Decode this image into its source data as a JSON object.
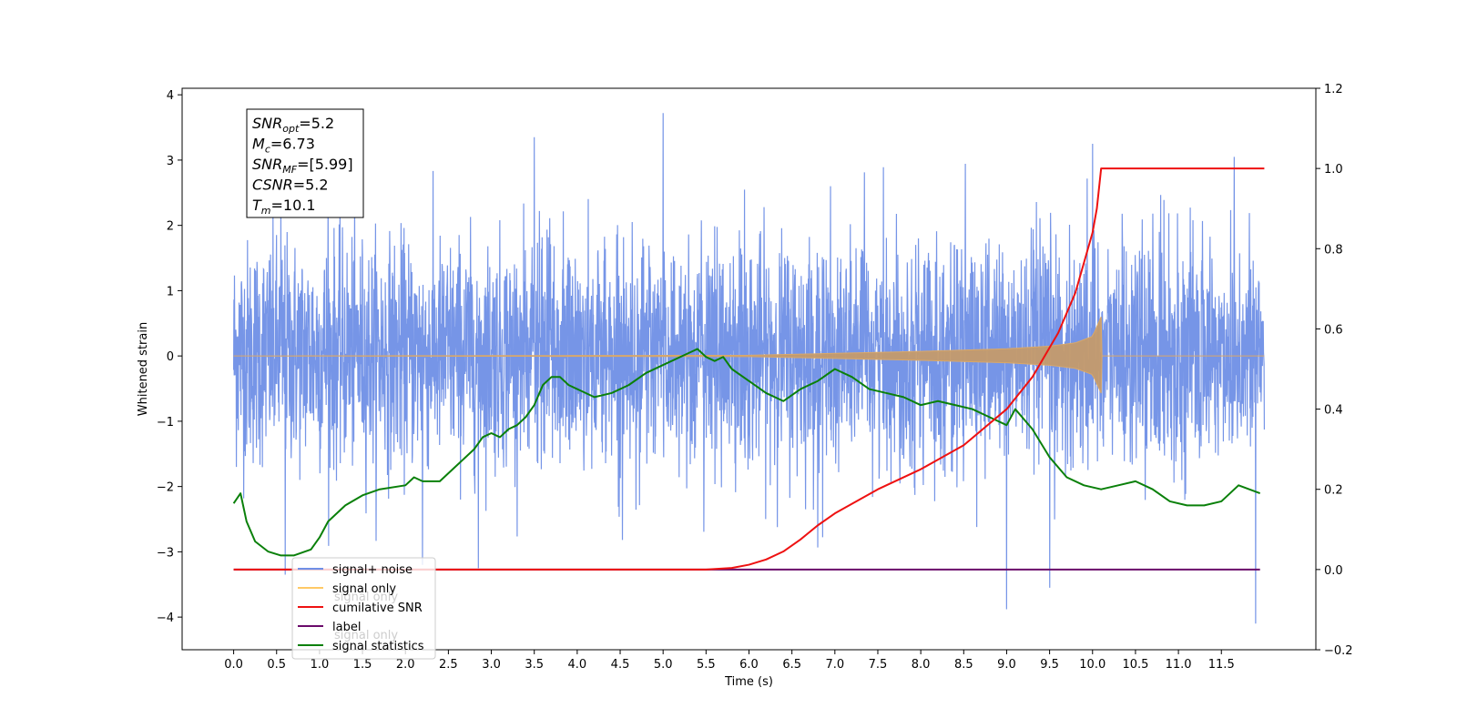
{
  "chart_data": {
    "type": "line",
    "xlabel": "Time (s)",
    "ylabel_left": "Whitened strain",
    "ylabel_right": "",
    "xlim": [
      -0.6,
      12.6
    ],
    "ylim_left": [
      -4.5,
      4.1
    ],
    "ylim_right": [
      -0.2,
      1.2
    ],
    "x_ticks": [
      "0.0",
      "0.5",
      "1.0",
      "1.5",
      "2.0",
      "2.5",
      "3.0",
      "3.5",
      "4.0",
      "4.5",
      "5.0",
      "5.5",
      "6.0",
      "6.5",
      "7.0",
      "7.5",
      "8.0",
      "8.5",
      "9.0",
      "9.5",
      "10.0",
      "10.5",
      "11.0",
      "11.5"
    ],
    "y_ticks_left": [
      4,
      3,
      2,
      1,
      0,
      -1,
      -2,
      -3,
      -4
    ],
    "y_ticks_right": [
      1.2,
      1.0,
      0.8,
      0.6,
      0.4,
      0.2,
      0.0,
      -0.2
    ],
    "grid": false,
    "legend_position": "lower-left",
    "annotation": [
      {
        "label": "SNR",
        "sub": "opt",
        "value": "=5.2"
      },
      {
        "label": "M",
        "sub": "c",
        "value": "=6.73"
      },
      {
        "label": "SNR",
        "sub": "MF",
        "value": "=[5.99]"
      },
      {
        "label": "CSNR",
        "sub": "",
        "value": "=5.2"
      },
      {
        "label": "T",
        "sub": "m",
        "value": "=10.1"
      }
    ],
    "series": [
      {
        "name": "signal+ noise",
        "color": "#6f8fe6",
        "axis": "left",
        "description_values": "noisy strain, range approx -4.1 to 3.7, mostly between -2.3 and 2.3",
        "x_range": [
          0.0,
          12.0
        ],
        "spikes": [
          [
            0.55,
            2.2
          ],
          [
            1.1,
            2.4
          ],
          [
            2.2,
            -3.2
          ],
          [
            3.5,
            3.35
          ],
          [
            5.0,
            3.72
          ],
          [
            9.0,
            -3.88
          ],
          [
            9.5,
            -3.55
          ],
          [
            10.0,
            3.25
          ],
          [
            11.65,
            3.05
          ],
          [
            11.9,
            -4.1
          ],
          [
            0.6,
            -3.35
          ],
          [
            2.85,
            -3.25
          ],
          [
            6.95,
            2.6
          ]
        ]
      },
      {
        "name": "signal only",
        "color": "#c49a6c",
        "axis": "left",
        "x": [
          0.0,
          6.0,
          7.0,
          8.0,
          9.0,
          9.5,
          9.8,
          10.0,
          10.1,
          10.11,
          12.0
        ],
        "envelope": [
          0.0,
          0.01,
          0.04,
          0.07,
          0.11,
          0.15,
          0.2,
          0.3,
          0.6,
          0.0,
          0.0
        ]
      },
      {
        "name": "cumilative SNR",
        "color": "#ee1111",
        "axis": "right",
        "x": [
          0.0,
          5.0,
          5.5,
          5.8,
          6.0,
          6.2,
          6.4,
          6.6,
          6.8,
          7.0,
          7.5,
          8.0,
          8.5,
          9.0,
          9.3,
          9.6,
          9.8,
          10.0,
          10.05,
          10.1,
          12.0
        ],
        "y": [
          0.0,
          0.0,
          0.0,
          0.004,
          0.012,
          0.025,
          0.045,
          0.075,
          0.11,
          0.14,
          0.2,
          0.25,
          0.31,
          0.4,
          0.48,
          0.59,
          0.69,
          0.84,
          0.9,
          1.0,
          1.0
        ]
      },
      {
        "name": "label",
        "color": "#6a0a6a",
        "axis": "right",
        "x": [
          0.0,
          11.95
        ],
        "y": [
          0.0,
          0.0
        ]
      },
      {
        "name": "signal statistics",
        "color": "#0a800a",
        "axis": "right",
        "x": [
          0.0,
          0.08,
          0.15,
          0.25,
          0.4,
          0.55,
          0.7,
          0.9,
          1.0,
          1.1,
          1.3,
          1.5,
          1.7,
          2.0,
          2.1,
          2.2,
          2.4,
          2.6,
          2.8,
          2.9,
          3.0,
          3.1,
          3.2,
          3.3,
          3.4,
          3.5,
          3.6,
          3.7,
          3.8,
          3.9,
          4.0,
          4.2,
          4.4,
          4.6,
          4.8,
          5.0,
          5.2,
          5.4,
          5.5,
          5.6,
          5.7,
          5.8,
          6.0,
          6.2,
          6.4,
          6.6,
          6.8,
          7.0,
          7.2,
          7.4,
          7.6,
          7.8,
          8.0,
          8.2,
          8.4,
          8.6,
          8.8,
          9.0,
          9.1,
          9.3,
          9.5,
          9.7,
          9.9,
          10.1,
          10.3,
          10.5,
          10.7,
          10.9,
          11.1,
          11.3,
          11.5,
          11.7,
          11.95
        ],
        "y": [
          0.165,
          0.19,
          0.12,
          0.07,
          0.045,
          0.035,
          0.035,
          0.05,
          0.08,
          0.12,
          0.16,
          0.185,
          0.2,
          0.21,
          0.23,
          0.22,
          0.22,
          0.26,
          0.3,
          0.33,
          0.34,
          0.33,
          0.35,
          0.36,
          0.38,
          0.41,
          0.46,
          0.48,
          0.48,
          0.46,
          0.45,
          0.43,
          0.44,
          0.46,
          0.49,
          0.51,
          0.53,
          0.55,
          0.53,
          0.52,
          0.53,
          0.5,
          0.47,
          0.44,
          0.42,
          0.45,
          0.47,
          0.5,
          0.48,
          0.45,
          0.44,
          0.43,
          0.41,
          0.42,
          0.41,
          0.4,
          0.38,
          0.36,
          0.4,
          0.35,
          0.28,
          0.23,
          0.21,
          0.2,
          0.21,
          0.22,
          0.2,
          0.17,
          0.16,
          0.16,
          0.17,
          0.21,
          0.19
        ]
      }
    ]
  },
  "legend": {
    "items": [
      "signal+ noise",
      "signal only",
      "cumilative SNR",
      "label",
      "signal statistics"
    ],
    "ghost_items": [
      "signal only",
      "signal only"
    ]
  }
}
